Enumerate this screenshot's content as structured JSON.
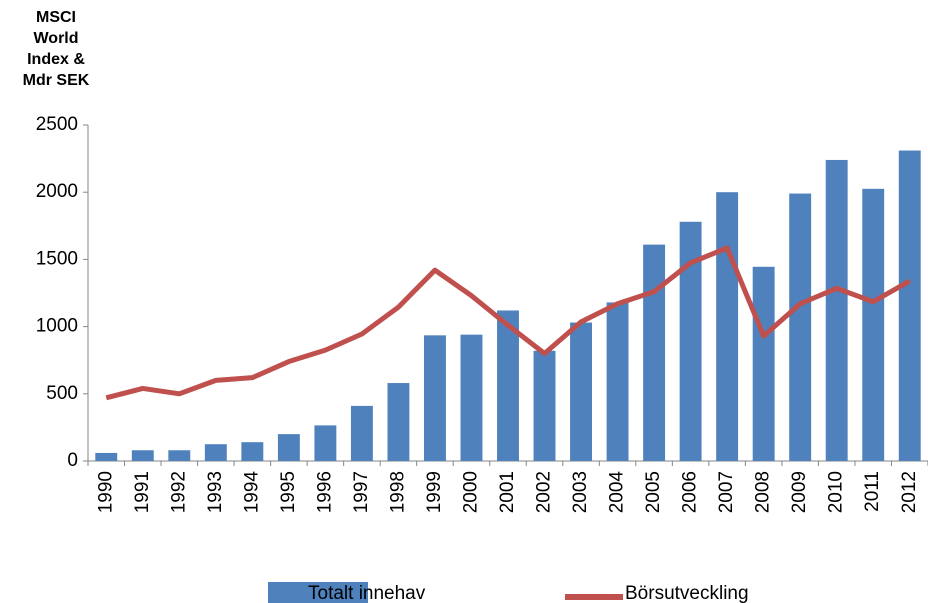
{
  "chart_data": {
    "type": "bar_line",
    "y_label_lines": [
      "MSCI",
      "World",
      "Index &",
      "Mdr SEK"
    ],
    "categories": [
      "1990",
      "1991",
      "1992",
      "1993",
      "1994",
      "1995",
      "1996",
      "1997",
      "1998",
      "1999",
      "2000",
      "2001",
      "2002",
      "2003",
      "2004",
      "2005",
      "2006",
      "2007",
      "2008",
      "2009",
      "2010",
      "2011",
      "2012"
    ],
    "series": [
      {
        "name": "Totalt innehav",
        "color": "#4f81bd",
        "kind": "bar",
        "values": [
          60,
          80,
          80,
          125,
          140,
          200,
          265,
          410,
          580,
          935,
          940,
          1120,
          820,
          1030,
          1180,
          1610,
          1780,
          2000,
          1445,
          1990,
          2240,
          2025,
          2310
        ]
      },
      {
        "name": "Börsutveckling",
        "color": "#c0504d",
        "kind": "line",
        "values": [
          470,
          540,
          500,
          600,
          620,
          740,
          825,
          945,
          1145,
          1420,
          1230,
          1010,
          800,
          1035,
          1170,
          1260,
          1475,
          1585,
          930,
          1170,
          1285,
          1185,
          1340
        ]
      }
    ],
    "ylim": [
      0,
      2500
    ],
    "yticks": [
      0,
      500,
      1000,
      1500,
      2000,
      2500
    ],
    "grid": false,
    "legend": "bottom"
  }
}
